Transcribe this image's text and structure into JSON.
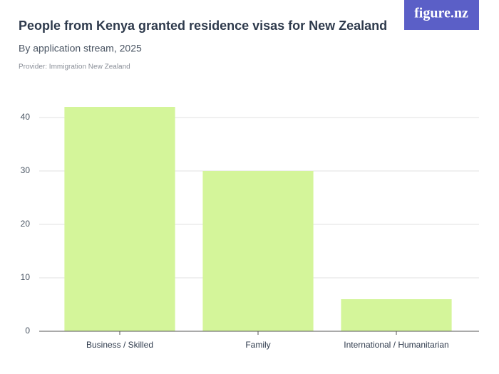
{
  "chart_data": {
    "type": "bar",
    "title": "People from Kenya granted residence visas for New Zealand",
    "subtitle": "By application stream, 2025",
    "provider": "Provider: Immigration New Zealand",
    "logo": "figure.nz",
    "categories": [
      "Business / Skilled",
      "Family",
      "International / Humanitarian"
    ],
    "values": [
      42,
      30,
      6
    ],
    "color": "#d4f59a",
    "ylim": [
      0,
      45
    ],
    "yticks": [
      0,
      10,
      20,
      30,
      40
    ],
    "grid": true
  }
}
